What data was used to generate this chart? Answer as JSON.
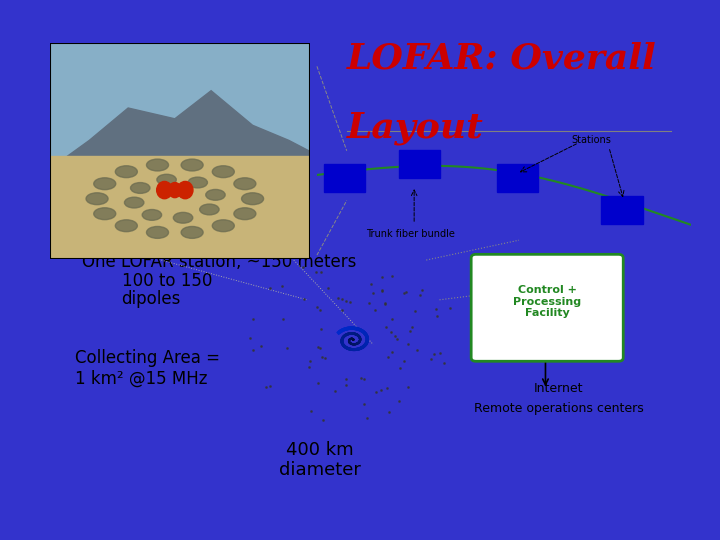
{
  "bg_color": "#3333cc",
  "panel_color": "#ffffff",
  "title_lofar": "LOFAR:",
  "title_overall": " Overall",
  "title_layout": "Layout",
  "title_color": "#cc0000",
  "text_station": "One LOFAR station, ~150 meters",
  "text_dipoles_line1": "100 to 150",
  "text_dipoles_line2": "dipoles",
  "text_collecting1": "Collecting Area =",
  "text_collecting2": "1 km² @15 MHz",
  "text_400km": "400 km",
  "text_diameter": "diameter",
  "text_remote": "Remote operations centers",
  "text_internet": "Internet",
  "text_control": "Control +\nProcessing\nFacility",
  "text_stations_label": "Stations",
  "text_trunk": "Trunk fiber bundle",
  "station_box_color": "#0000cc",
  "control_text_color": "#228822",
  "control_border_color": "#228822",
  "spiral_color": "#0000aa",
  "green_line_color": "#228822",
  "font_size_title": 26,
  "font_size_body": 12,
  "font_size_small": 9,
  "font_size_tiny": 7,
  "photo_sky": "#87afc7",
  "photo_mountain": "#607080",
  "photo_ground": "#c8b478",
  "photo_dipole": "#6b6b50"
}
